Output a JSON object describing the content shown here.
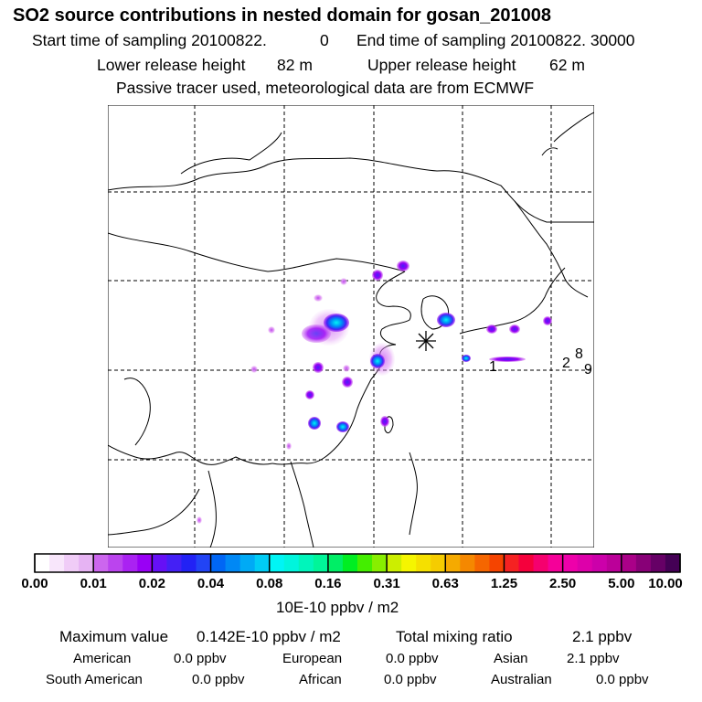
{
  "header": {
    "title": "SO2 source contributions in nested domain for gosan_201008",
    "start_label": "Start time of sampling 20100822.",
    "start_value": "0",
    "end_label": "End time of sampling 20100822. 30000",
    "lower_label": "Lower release height",
    "lower_value": "82 m",
    "upper_label": "Upper release height",
    "upper_value": "62 m",
    "note": "Passive tracer used, meteorological data are from ECMWF"
  },
  "map": {
    "receptor_marker": "asterisk-icon",
    "labels": [
      "1",
      "2",
      "8",
      "9"
    ]
  },
  "colorbar": {
    "ticks": [
      "0.00",
      "0.01",
      "0.02",
      "0.04",
      "0.08",
      "0.16",
      "0.31",
      "0.63",
      "1.25",
      "2.50",
      "5.00",
      "10.00"
    ],
    "unit": "10E-10 ppbv / m2",
    "colors": [
      "#ffffff",
      "#f8e6fb",
      "#f0ccf7",
      "#e6b3f3",
      "#cc66ee",
      "#bb44ee",
      "#aa22f2",
      "#9900f5",
      "#6610f5",
      "#4420f5",
      "#2222f5",
      "#2244f5",
      "#0066f5",
      "#0088f5",
      "#00aaf5",
      "#00ccf5",
      "#00f5f5",
      "#00f5dd",
      "#00f5bb",
      "#00f599",
      "#00ee66",
      "#00ee22",
      "#44ee00",
      "#88ee00",
      "#ccee00",
      "#f5f500",
      "#f5e000",
      "#f5cc00",
      "#f5aa00",
      "#f58800",
      "#f56600",
      "#f54400",
      "#f52222",
      "#f5003c",
      "#f5006e",
      "#f50099",
      "#ee00aa",
      "#dd00aa",
      "#cc00aa",
      "#bb0099",
      "#aa0088",
      "#880077",
      "#660066",
      "#440055"
    ]
  },
  "stats": {
    "max_label": "Maximum value",
    "max_value": "0.142E-10 ppbv / m2",
    "total_label": "Total mixing ratio",
    "total_value": "2.1 ppbv",
    "regions": [
      {
        "name": "American",
        "value": "0.0 ppbv"
      },
      {
        "name": "European",
        "value": "0.0 ppbv"
      },
      {
        "name": "Asian",
        "value": "2.1 ppbv"
      },
      {
        "name": "South American",
        "value": "0.0 ppbv"
      },
      {
        "name": "African",
        "value": "0.0 ppbv"
      },
      {
        "name": "Australian",
        "value": "0.0 ppbv"
      }
    ]
  }
}
